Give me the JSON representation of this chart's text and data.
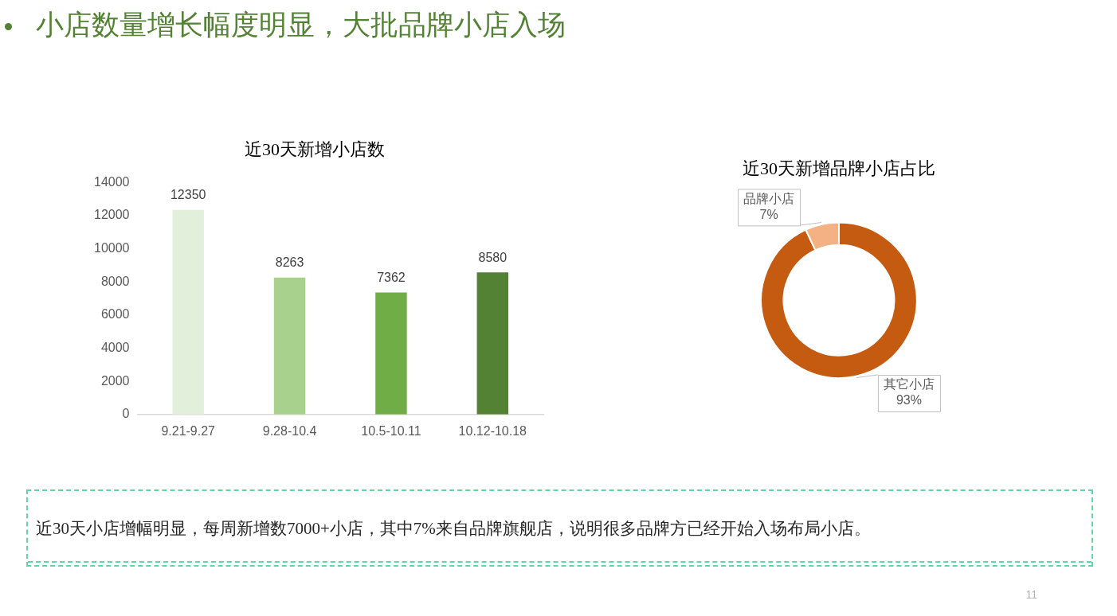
{
  "chart_data": [
    {
      "type": "other",
      "title": "小店数量增长幅度明显，大批品牌小店入场"
    },
    {
      "type": "bar",
      "title": "近30天新增小店数",
      "categories": [
        "9.21-9.27",
        "9.28-10.4",
        "10.5-10.11",
        "10.12-10.18"
      ],
      "values": [
        12350,
        8263,
        7362,
        8580
      ],
      "colors": [
        "#e2efda",
        "#a9d18e",
        "#70ad47",
        "#548235"
      ],
      "ylim": [
        0,
        14000
      ],
      "yticks": [
        0,
        2000,
        4000,
        6000,
        8000,
        10000,
        12000,
        14000
      ],
      "data_labels": true
    },
    {
      "type": "donut",
      "title": "近30天新增品牌小店占比",
      "categories": [
        "其它小店",
        "品牌小店"
      ],
      "values": [
        93,
        7
      ],
      "colors": [
        "#c55a11",
        "#f4b183"
      ],
      "value_labels": [
        "93%",
        "7%"
      ]
    },
    {
      "type": "other",
      "annotations": [
        "近30天小店增幅明显，每周新增数7000+小店，其中7%来自品牌旗舰店，说明很多品牌方已经开始入场布局小店。",
        "11"
      ]
    }
  ]
}
